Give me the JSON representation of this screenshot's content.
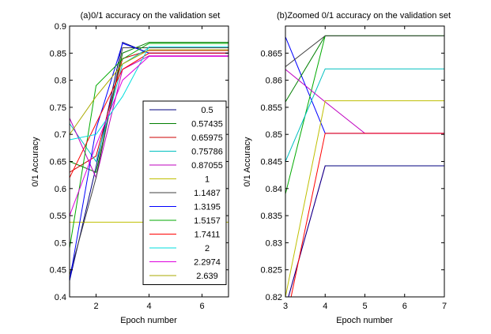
{
  "chart_data": [
    {
      "type": "line",
      "title": "(a)0/1 accuracy on the validation set",
      "xlabel": "Epoch number",
      "ylabel": "0/1 Accuracy",
      "xlim": [
        1,
        7
      ],
      "ylim": [
        0.4,
        0.9
      ],
      "x_ticks": [
        2,
        4,
        6
      ],
      "y_ticks": [
        0.4,
        0.45,
        0.5,
        0.55,
        0.6,
        0.65,
        0.7,
        0.75,
        0.8,
        0.85,
        0.9
      ],
      "grid": false,
      "legend": "lower-right",
      "series": [
        {
          "name": "0.5",
          "color": "#00007f",
          "x": [
            1,
            2,
            3,
            4,
            5,
            6,
            7
          ],
          "y": [
            0.43,
            0.64,
            0.87,
            0.85,
            0.85,
            0.85,
            0.85
          ]
        },
        {
          "name": "0.57435",
          "color": "#007f00",
          "x": [
            1,
            2,
            3,
            4,
            5,
            6,
            7
          ],
          "y": [
            0.65,
            0.63,
            0.85,
            0.87,
            0.87,
            0.87,
            0.87
          ]
        },
        {
          "name": "0.65975",
          "color": "#cc0000",
          "x": [
            1,
            2,
            3,
            4,
            5,
            6,
            7
          ],
          "y": [
            0.63,
            0.66,
            0.84,
            0.855,
            0.855,
            0.855,
            0.855
          ]
        },
        {
          "name": "0.75786",
          "color": "#00bfbf",
          "x": [
            1,
            2,
            3,
            4,
            5,
            6,
            7
          ],
          "y": [
            0.72,
            0.65,
            0.83,
            0.86,
            0.86,
            0.86,
            0.86
          ]
        },
        {
          "name": "0.87055",
          "color": "#bf00bf",
          "x": [
            1,
            2,
            3,
            4,
            5,
            6,
            7
          ],
          "y": [
            0.73,
            0.62,
            0.82,
            0.845,
            0.845,
            0.845,
            0.845
          ]
        },
        {
          "name": "1",
          "color": "#bfbf00",
          "x": [
            1,
            2,
            3,
            4,
            5,
            6,
            7
          ],
          "y": [
            0.538,
            0.538,
            0.538,
            0.538,
            0.538,
            0.538,
            0.538
          ]
        },
        {
          "name": "1.1487",
          "color": "#3f3f3f",
          "x": [
            1,
            2,
            3,
            4,
            5,
            6,
            7
          ],
          "y": [
            0.44,
            0.62,
            0.86,
            0.86,
            0.86,
            0.86,
            0.86
          ]
        },
        {
          "name": "1.3195",
          "color": "#0000ff",
          "x": [
            1,
            2,
            3,
            4,
            5,
            6,
            7
          ],
          "y": [
            0.43,
            0.71,
            0.868,
            0.85,
            0.85,
            0.85,
            0.85
          ]
        },
        {
          "name": "1.5157",
          "color": "#00aa00",
          "x": [
            1,
            2,
            3,
            4,
            5,
            6,
            7
          ],
          "y": [
            0.49,
            0.79,
            0.839,
            0.868,
            0.868,
            0.868,
            0.868
          ]
        },
        {
          "name": "1.7411",
          "color": "#ff0000",
          "x": [
            1,
            2,
            3,
            4,
            5,
            6,
            7
          ],
          "y": [
            0.62,
            0.72,
            0.82,
            0.85,
            0.85,
            0.85,
            0.85
          ]
        },
        {
          "name": "2",
          "color": "#00dddd",
          "x": [
            1,
            2,
            3,
            4,
            5,
            6,
            7
          ],
          "y": [
            0.69,
            0.7,
            0.77,
            0.862,
            0.862,
            0.862,
            0.862
          ]
        },
        {
          "name": "2.2974",
          "color": "#dd00dd",
          "x": [
            1,
            2,
            3,
            4,
            5,
            6,
            7
          ],
          "y": [
            0.55,
            0.68,
            0.8,
            0.844,
            0.844,
            0.844,
            0.844
          ]
        },
        {
          "name": "2.639",
          "color": "#aaaa00",
          "x": [
            1,
            2,
            3,
            4,
            5,
            6,
            7
          ],
          "y": [
            0.7,
            0.77,
            0.83,
            0.856,
            0.856,
            0.856,
            0.856
          ]
        }
      ]
    },
    {
      "type": "line",
      "title": "(b)Zoomed 0/1 accuracy on the validation set",
      "xlabel": "Epoch number",
      "ylabel": "0/1 Accuracy",
      "xlim": [
        3,
        7
      ],
      "ylim": [
        0.82,
        0.87
      ],
      "x_ticks": [
        3,
        4,
        5,
        6,
        7
      ],
      "y_ticks": [
        0.82,
        0.825,
        0.83,
        0.835,
        0.84,
        0.845,
        0.85,
        0.855,
        0.86,
        0.865
      ],
      "grid": false,
      "series": [
        {
          "color": "#0000ff",
          "x": [
            3,
            4,
            5,
            6,
            7
          ],
          "y": [
            0.868,
            0.8502,
            0.8502,
            0.8502,
            0.8502
          ]
        },
        {
          "color": "#007f00",
          "x": [
            3,
            4,
            5,
            6,
            7
          ],
          "y": [
            0.856,
            0.8682,
            0.8682,
            0.8682,
            0.8682
          ]
        },
        {
          "color": "#00aa00",
          "x": [
            3,
            4,
            5,
            6,
            7
          ],
          "y": [
            0.839,
            0.8682,
            0.8682,
            0.8682,
            0.8682
          ]
        },
        {
          "color": "#00bfbf",
          "x": [
            3,
            4,
            5,
            6,
            7
          ],
          "y": [
            0.845,
            0.8621,
            0.8621,
            0.8621,
            0.8621
          ]
        },
        {
          "color": "#bf00bf",
          "x": [
            3,
            4,
            5,
            6,
            7
          ],
          "y": [
            0.862,
            0.856,
            0.8502,
            0.8502,
            0.8502
          ]
        },
        {
          "color": "#3f3f3f",
          "x": [
            3,
            4,
            5,
            6,
            7
          ],
          "y": [
            0.8625,
            0.8682,
            0.8682,
            0.8682,
            0.8682
          ]
        },
        {
          "color": "#bfbf00",
          "x": [
            3,
            4,
            5,
            6,
            7
          ],
          "y": [
            0.82,
            0.8562,
            0.8562,
            0.8562,
            0.8562
          ]
        },
        {
          "color": "#dd00dd",
          "x": [
            3,
            4,
            5,
            6,
            7
          ],
          "y": [
            0.818,
            0.8442,
            0.8442,
            0.8442,
            0.8442
          ]
        },
        {
          "color": "#00007f",
          "x": [
            3,
            4,
            5,
            6,
            7
          ],
          "y": [
            0.818,
            0.8442,
            0.8442,
            0.8442,
            0.8442
          ]
        },
        {
          "color": "#ff0000",
          "x": [
            3,
            4,
            5,
            6,
            7
          ],
          "y": [
            0.815,
            0.8502,
            0.8502,
            0.8502,
            0.8502
          ]
        }
      ]
    }
  ]
}
